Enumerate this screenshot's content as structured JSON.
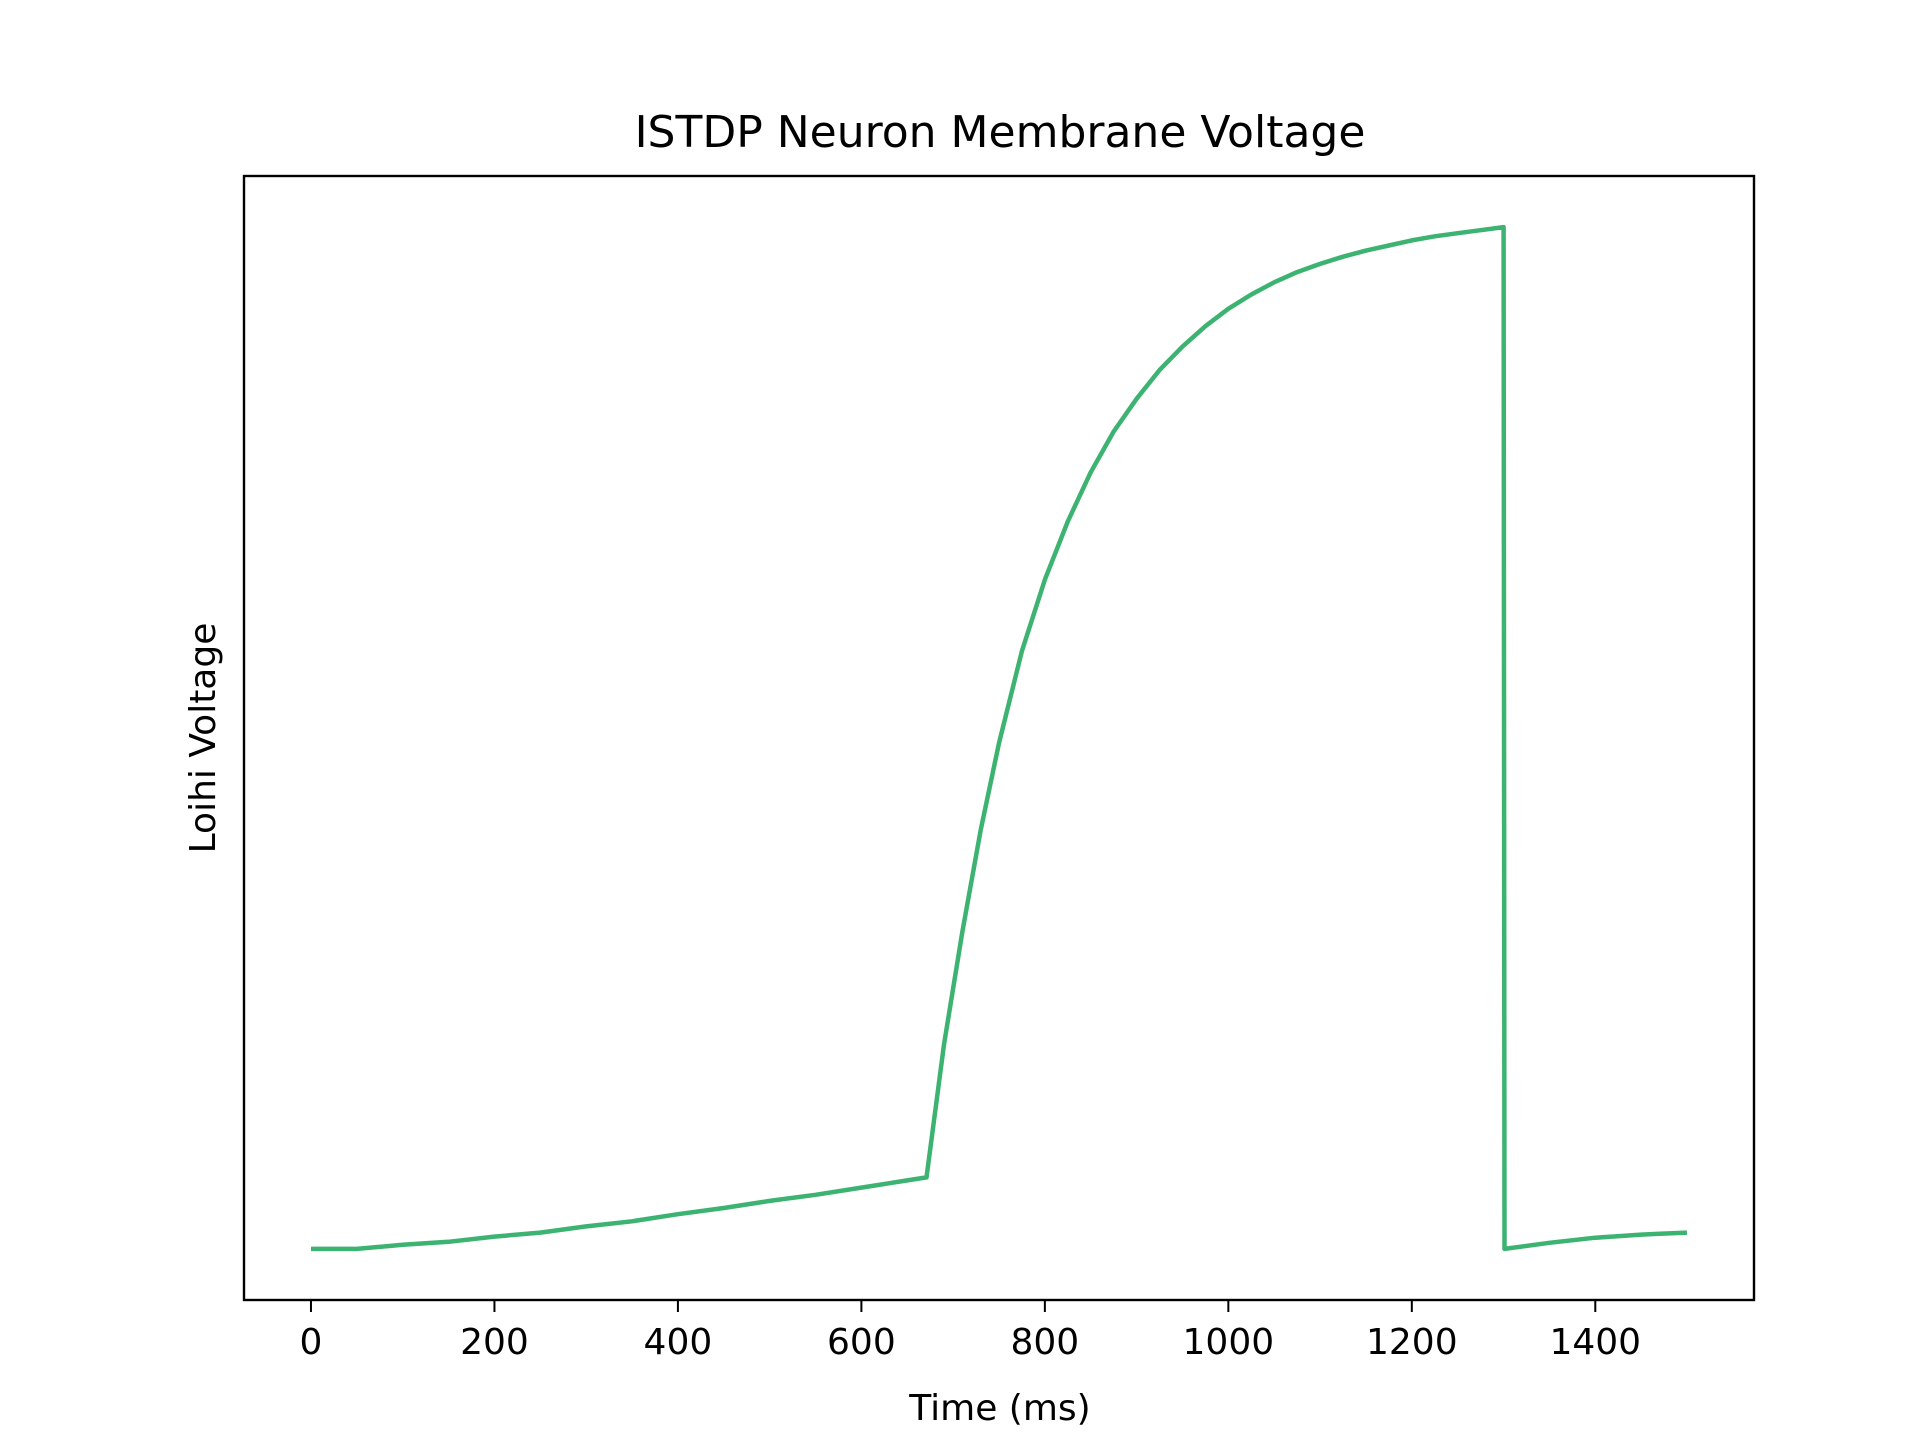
{
  "chart_data": {
    "type": "line",
    "title": "ISTDP Neuron Membrane Voltage",
    "xlabel": "Time (ms)",
    "ylabel": "Loihi Voltage",
    "xlim": [
      -73,
      1573
    ],
    "ylim": [
      -0.05,
      1.05
    ],
    "x_ticks": [
      0,
      200,
      400,
      600,
      800,
      1000,
      1200,
      1400
    ],
    "y_ticks_shown": false,
    "grid": false,
    "line_color": "#3cb371",
    "series": [
      {
        "x": [
          0,
          50,
          100,
          150,
          200,
          250,
          300,
          350,
          400,
          450,
          500,
          550,
          600,
          650,
          671,
          690,
          710,
          730,
          750,
          775,
          800,
          825,
          850,
          875,
          900,
          925,
          950,
          975,
          1000,
          1025,
          1050,
          1075,
          1100,
          1125,
          1150,
          1175,
          1200,
          1225,
          1250,
          1275,
          1300,
          1301,
          1350,
          1400,
          1450,
          1500
        ],
        "y": [
          0.0,
          0.0,
          0.004,
          0.007,
          0.012,
          0.016,
          0.022,
          0.027,
          0.034,
          0.04,
          0.047,
          0.053,
          0.06,
          0.067,
          0.07,
          0.2,
          0.31,
          0.41,
          0.495,
          0.585,
          0.655,
          0.712,
          0.76,
          0.8,
          0.832,
          0.86,
          0.883,
          0.903,
          0.92,
          0.934,
          0.946,
          0.956,
          0.964,
          0.971,
          0.977,
          0.982,
          0.987,
          0.991,
          0.994,
          0.997,
          1.0,
          0.0,
          0.006,
          0.011,
          0.014,
          0.016
        ]
      }
    ]
  }
}
